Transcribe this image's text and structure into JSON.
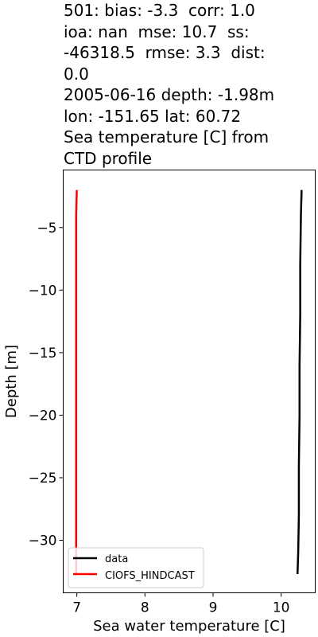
{
  "chart_data": {
    "type": "line",
    "title_lines": [
      "501: bias: -3.3  corr: 1.0",
      "ioa: nan  mse: 10.7  ss:",
      "-46318.5  rmse: 3.3  dist:",
      "0.0",
      "2005-06-16 depth: -1.98m",
      "lon: -151.65 lat: 60.72",
      "Sea temperature [C] from",
      "CTD profile"
    ],
    "xlabel": "Sea water temperature [C]",
    "ylabel": "Depth [m]",
    "xlim": [
      6.8,
      10.5
    ],
    "ylim": [
      -34.2,
      -0.4
    ],
    "xticks": [
      7,
      8,
      9,
      10
    ],
    "yticks": [
      -5,
      -10,
      -15,
      -20,
      -25,
      -30
    ],
    "xtick_labels": [
      "7",
      "8",
      "9",
      "10"
    ],
    "ytick_labels": [
      "−5",
      "−10",
      "−15",
      "−20",
      "−25",
      "−30"
    ],
    "legend_position": "bottom-left",
    "series": [
      {
        "name": "data",
        "color": "#000000",
        "points": [
          [
            10.3,
            -2.0
          ],
          [
            10.29,
            -4.0
          ],
          [
            10.28,
            -8.0
          ],
          [
            10.28,
            -12.0
          ],
          [
            10.27,
            -16.0
          ],
          [
            10.27,
            -20.0
          ],
          [
            10.26,
            -24.0
          ],
          [
            10.26,
            -28.0
          ],
          [
            10.25,
            -31.0
          ],
          [
            10.24,
            -32.7
          ]
        ]
      },
      {
        "name": "CIOFS_HINDCAST",
        "color": "#ff0000",
        "points": [
          [
            7.0,
            -2.0
          ],
          [
            6.99,
            -4.0
          ],
          [
            6.99,
            -10.0
          ],
          [
            6.99,
            -16.0
          ],
          [
            6.99,
            -22.0
          ],
          [
            6.99,
            -28.0
          ],
          [
            6.99,
            -32.7
          ]
        ]
      }
    ]
  }
}
